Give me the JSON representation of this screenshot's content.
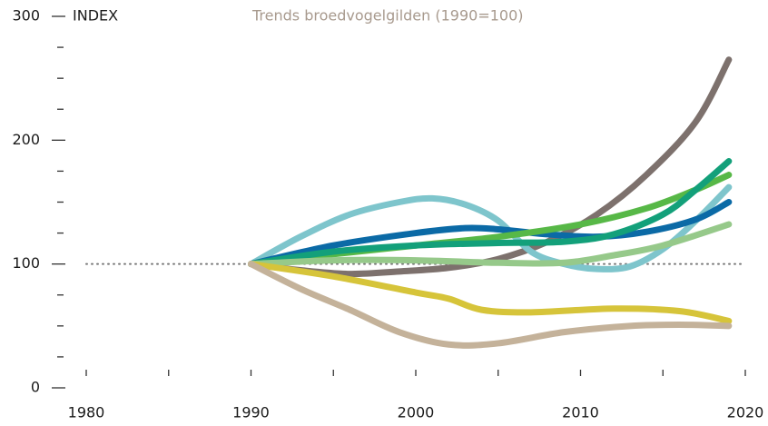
{
  "chart_data": {
    "type": "line",
    "title": "Trends broedvogelgilden (1990=100)",
    "y_label": "INDEX",
    "xlim": [
      1980,
      2020
    ],
    "xticks": [
      1980,
      1990,
      2000,
      2010,
      2020
    ],
    "xminor_ticks": [
      1985,
      1995,
      2005,
      2015
    ],
    "ylim": [
      0,
      300
    ],
    "yticks": [
      0,
      100,
      200,
      300
    ],
    "yminor_ticks": [
      25,
      50,
      75,
      125,
      150,
      175,
      225,
      250,
      275
    ],
    "reference_line": 100,
    "series": [
      {
        "color": "#7d716d",
        "x": [
          1990,
          1993,
          1996,
          1999,
          2002,
          2005,
          2008,
          2011,
          2014,
          2017,
          2019
        ],
        "values": [
          100,
          95,
          92,
          94,
          97,
          104,
          118,
          140,
          172,
          215,
          265
        ]
      },
      {
        "color": "#7ec5cc",
        "x": [
          1990,
          1993,
          1996,
          1999,
          2001,
          2003,
          2005,
          2007,
          2009,
          2011,
          2013,
          2015,
          2017,
          2019
        ],
        "values": [
          100,
          122,
          140,
          150,
          153,
          148,
          135,
          110,
          100,
          96,
          98,
          112,
          135,
          162
        ]
      },
      {
        "color": "#0b6aa6",
        "x": [
          1990,
          1995,
          2000,
          2003,
          2005,
          2008,
          2011,
          2014,
          2017,
          2019
        ],
        "values": [
          100,
          115,
          125,
          129,
          128,
          124,
          122,
          126,
          136,
          150
        ]
      },
      {
        "color": "#57b847",
        "x": [
          1990,
          1995,
          2000,
          2005,
          2010,
          2014,
          2017,
          2019
        ],
        "values": [
          100,
          108,
          115,
          122,
          132,
          145,
          160,
          172
        ]
      },
      {
        "color": "#13a07a",
        "x": [
          1990,
          1995,
          2000,
          2005,
          2009,
          2012,
          2015,
          2017,
          2019
        ],
        "values": [
          100,
          110,
          115,
          117,
          118,
          124,
          140,
          160,
          183
        ]
      },
      {
        "color": "#96c98a",
        "x": [
          1990,
          1995,
          2000,
          2005,
          2009,
          2012,
          2015,
          2019
        ],
        "values": [
          100,
          103,
          103,
          101,
          101,
          107,
          115,
          132
        ]
      },
      {
        "color": "#d6c43a",
        "x": [
          1990,
          1995,
          2000,
          2002,
          2004,
          2007,
          2012,
          2016,
          2019
        ],
        "values": [
          100,
          90,
          77,
          72,
          63,
          61,
          64,
          62,
          54
        ]
      },
      {
        "color": "#c4b29a",
        "x": [
          1990,
          1993,
          1996,
          1999,
          2002,
          2005,
          2009,
          2013,
          2016,
          2019
        ],
        "values": [
          100,
          80,
          63,
          45,
          35,
          36,
          45,
          50,
          51,
          50
        ]
      }
    ]
  }
}
